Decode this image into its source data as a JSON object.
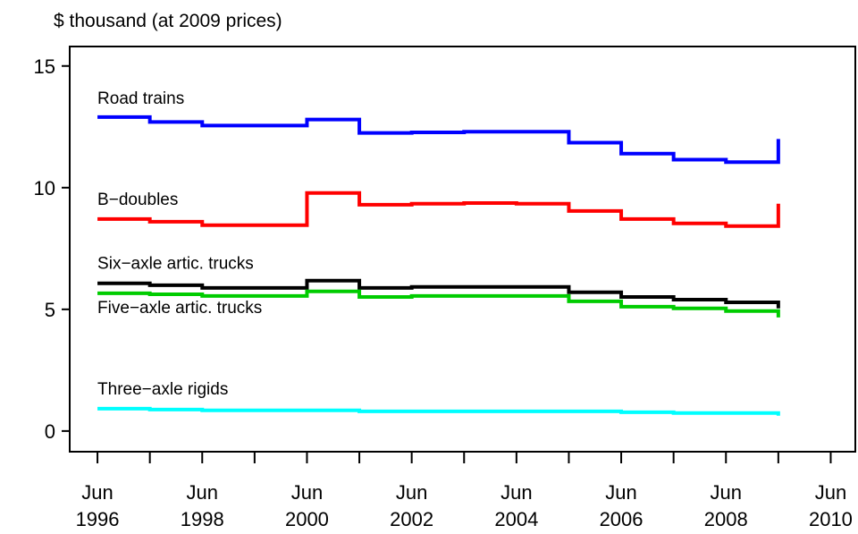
{
  "chart_data": {
    "type": "step",
    "y_axis_label": "$ thousand (at 2009 prices)",
    "x": [
      1996,
      1997,
      1998,
      1999,
      2000,
      2001,
      2002,
      2003,
      2004,
      2005,
      2006,
      2007,
      2008,
      2009
    ],
    "series": [
      {
        "name": "Road trains",
        "color": "#0000ff",
        "values": [
          12.9,
          12.7,
          12.55,
          12.55,
          12.8,
          12.25,
          12.27,
          12.3,
          12.3,
          11.85,
          11.4,
          11.15,
          11.05,
          12.0
        ]
      },
      {
        "name": "B−doubles",
        "color": "#ff0000",
        "values": [
          8.71,
          8.6,
          8.46,
          8.46,
          9.78,
          9.3,
          9.34,
          9.37,
          9.34,
          9.04,
          8.71,
          8.53,
          8.42,
          9.34
        ]
      },
      {
        "name": "Six−axle artic. trucks",
        "color": "#000000",
        "values": [
          6.07,
          5.99,
          5.88,
          5.88,
          6.18,
          5.88,
          5.92,
          5.92,
          5.92,
          5.7,
          5.51,
          5.4,
          5.29,
          5.04
        ]
      },
      {
        "name": "Five−axle artic. trucks",
        "color": "#00cc00",
        "values": [
          5.66,
          5.62,
          5.55,
          5.55,
          5.74,
          5.51,
          5.55,
          5.55,
          5.55,
          5.33,
          5.11,
          5.04,
          4.93,
          4.67
        ]
      },
      {
        "name": "Three−axle rigids",
        "color": "#00ffff",
        "values": [
          0.92,
          0.88,
          0.85,
          0.85,
          0.85,
          0.81,
          0.81,
          0.81,
          0.81,
          0.81,
          0.77,
          0.74,
          0.74,
          0.63
        ]
      }
    ],
    "xlim": [
      1995.47,
      2010.47
    ],
    "ylim": [
      -0.85,
      15.8
    ],
    "yticks": [
      0,
      5,
      10,
      15
    ],
    "xticks": [
      {
        "value": 1996,
        "label": "Jun 1996"
      },
      {
        "value": 1998,
        "label": "Jun 1998"
      },
      {
        "value": 2000,
        "label": "Jun 2000"
      },
      {
        "value": 2002,
        "label": "Jun 2002"
      },
      {
        "value": 2004,
        "label": "Jun 2004"
      },
      {
        "value": 2006,
        "label": "Jun 2006"
      },
      {
        "value": 2008,
        "label": "Jun 2008"
      },
      {
        "value": 2010,
        "label": "Jun 2010"
      }
    ],
    "xminorticks": [
      1997,
      1999,
      2001,
      2003,
      2005,
      2007,
      2009
    ]
  }
}
